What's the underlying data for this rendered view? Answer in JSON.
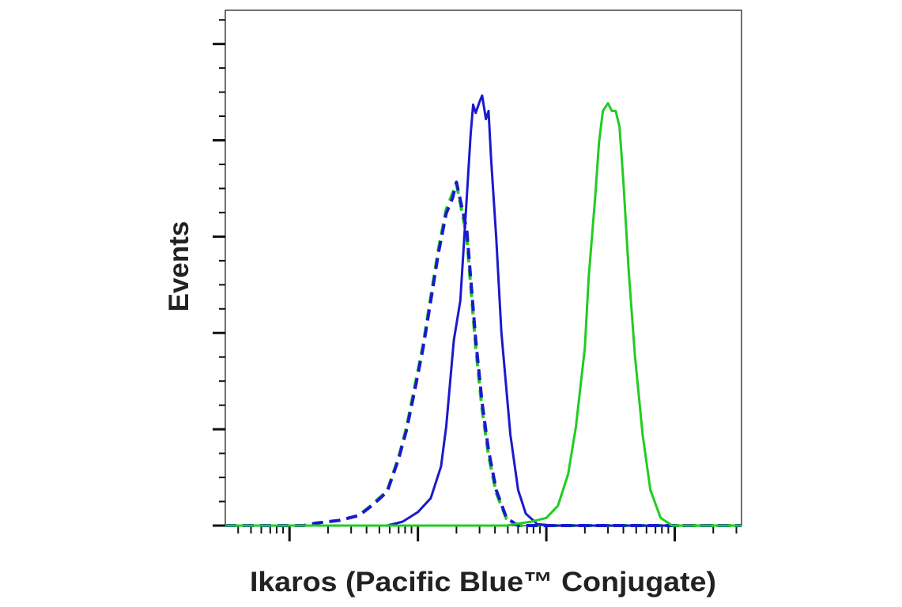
{
  "chart_data": {
    "type": "line",
    "xlabel": "Ikaros (Pacific Blue™ Conjugate)",
    "ylabel": "Events",
    "xlim": [
      -0.5,
      3.52
    ],
    "ylim": [
      0,
      107
    ],
    "xticks": [
      0,
      1,
      2,
      3
    ],
    "xminorticks": [
      -0.4,
      -0.3,
      -0.22,
      -0.15,
      -0.1,
      -0.05,
      0.3,
      0.48,
      0.6,
      0.7,
      0.78,
      0.85,
      0.9,
      0.95,
      1.3,
      1.48,
      1.6,
      1.7,
      1.78,
      1.85,
      1.9,
      1.95,
      2.3,
      2.48,
      2.6,
      2.7,
      2.78,
      2.85,
      2.9,
      2.95,
      3.3,
      3.48
    ],
    "yticks": [
      0,
      20,
      40,
      60,
      80,
      100
    ],
    "yminorticks": [
      5,
      10,
      15,
      25,
      30,
      35,
      45,
      50,
      55,
      65,
      70,
      75,
      85,
      90,
      95,
      105
    ],
    "series": [
      {
        "color": "#22cc22",
        "dash": true,
        "x": [
          -0.5,
          0.11,
          0.2,
          0.39,
          0.54,
          0.64,
          0.76,
          0.85,
          0.91,
          0.98,
          1.04,
          1.1,
          1.16,
          1.22,
          1.27,
          1.3,
          1.34,
          1.38,
          1.41,
          1.45,
          1.5,
          1.55,
          1.61,
          1.69,
          1.78,
          3.52
        ],
        "values": [
          0,
          0,
          0.5,
          1.1,
          2.1,
          4.3,
          7.2,
          14.2,
          20.2,
          29.5,
          37.5,
          47.5,
          57.4,
          65.6,
          69,
          71,
          65.5,
          60,
          50,
          36.9,
          24,
          14.5,
          6.8,
          1.4,
          0,
          0
        ]
      },
      {
        "color": "#1a1acc",
        "dash": true,
        "x": [
          -0.5,
          0.11,
          0.2,
          0.39,
          0.54,
          0.64,
          0.76,
          0.85,
          0.91,
          0.98,
          1.04,
          1.1,
          1.16,
          1.22,
          1.27,
          1.3,
          1.34,
          1.38,
          1.41,
          1.45,
          1.5,
          1.55,
          1.61,
          1.69,
          1.78,
          3.52
        ],
        "values": [
          0,
          0,
          0.5,
          1.1,
          2.1,
          4.1,
          7,
          13.9,
          19.7,
          28.7,
          36.9,
          46.7,
          56.6,
          64.8,
          68,
          71.3,
          66.4,
          61.5,
          51.6,
          38.5,
          25.4,
          15.6,
          7.4,
          1.6,
          0,
          0
        ]
      },
      {
        "color": "#1a1acc",
        "dash": false,
        "x": [
          -0.5,
          0.76,
          0.88,
          1.0,
          1.1,
          1.18,
          1.22,
          1.28,
          1.33,
          1.38,
          1.41,
          1.43,
          1.45,
          1.48,
          1.5,
          1.53,
          1.55,
          1.57,
          1.61,
          1.65,
          1.72,
          1.78,
          1.84,
          1.93,
          2.06,
          3.52
        ],
        "values": [
          0,
          0,
          0.8,
          2.8,
          5.7,
          12.3,
          20.5,
          38.5,
          46.7,
          68,
          81.1,
          87.4,
          85.7,
          88,
          89.3,
          84.4,
          86.1,
          76.2,
          59.8,
          40.2,
          18.9,
          7.4,
          2.5,
          0.3,
          0,
          0
        ]
      },
      {
        "color": "#22cc22",
        "dash": false,
        "x": [
          -0.5,
          1.69,
          1.75,
          1.88,
          2.0,
          2.09,
          2.17,
          2.23,
          2.3,
          2.33,
          2.38,
          2.41,
          2.44,
          2.48,
          2.51,
          2.54,
          2.57,
          2.6,
          2.64,
          2.69,
          2.75,
          2.81,
          2.89,
          2.98,
          3.52
        ],
        "values": [
          0,
          0,
          0.3,
          0.8,
          1.6,
          4.1,
          10.7,
          20.5,
          36.9,
          51.6,
          68,
          79.5,
          86.1,
          87.7,
          86.1,
          86.1,
          82.8,
          71.3,
          53.3,
          35.2,
          18.9,
          7.4,
          1.6,
          0,
          0
        ]
      }
    ]
  }
}
